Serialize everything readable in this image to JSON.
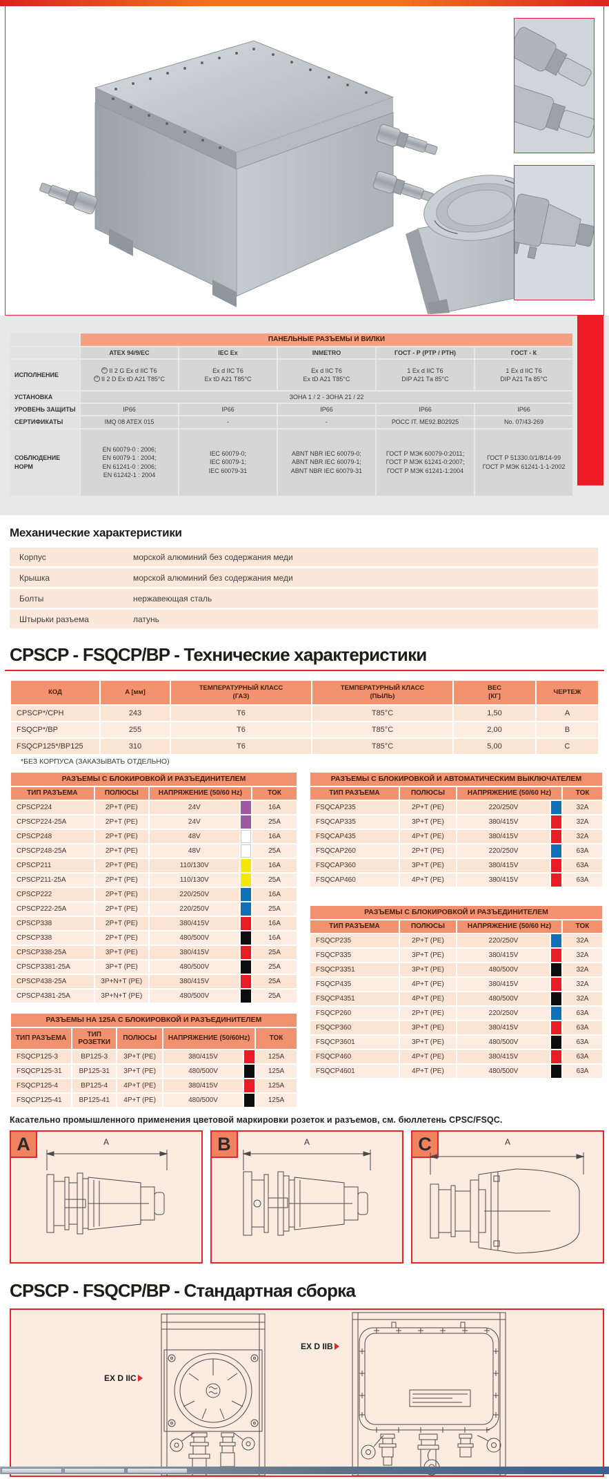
{
  "colors": {
    "accent_red": "#e8232a",
    "red_tab": "#ee1c25",
    "salmon_header": "#f29170",
    "row_pink_a": "#fbe4d4",
    "row_pink_b": "#fcece2",
    "swatch_purple": "#a05aa5",
    "swatch_white": "#ffffff",
    "swatch_yellow": "#f6e70a",
    "swatch_blue": "#0f70b7",
    "swatch_red": "#e81c24",
    "swatch_black": "#0c0c0c"
  },
  "panel_table": {
    "title": "ПАНЕЛЬНЫЕ РАЗЪЕМЫ И ВИЛКИ",
    "columns": [
      "ATEX 94/9/EC",
      "IEC Ex",
      "INMETRO",
      "ГОСТ - Р (РТР / РТН)",
      "ГОСТ - К"
    ],
    "execution": {
      "label": "ИСПОЛНЕНИЕ",
      "atex_gas": "II 2 G Ex d IIC T6",
      "atex_dust": "II 2 D Ex tD A21 T85°C",
      "iec": [
        "Ex d IIC T6",
        "Ex tD A21 T85°C"
      ],
      "inmetro": [
        "Ex d IIC T6",
        "Ex tD A21 T85°C"
      ],
      "gost_r": [
        "1 Ex d IIC T6",
        "DIP A21 Tа 85°C"
      ],
      "gost_k": [
        "1 Ex d IIC T6",
        "DIP A21 Tа 85°C"
      ]
    },
    "installation": {
      "label": "УСТАНОВКА",
      "value": "ЗОНА 1 / 2 - ЗОНА 21 / 22"
    },
    "protection": {
      "label": "УРОВЕНЬ ЗАЩИТЫ",
      "values": [
        "IP66",
        "IP66",
        "IP66",
        "IP66",
        "IP66"
      ]
    },
    "certificates": {
      "label": "СЕРТИФИКАТЫ",
      "values": [
        "IMQ 08 ATEX 015",
        "-",
        "-",
        "РОСС IT. МЕ92.В02925",
        "No. 07/43-269"
      ]
    },
    "norms": {
      "label": "СОБЛЮДЕНИЕ\nНОРМ",
      "atex": [
        "EN 60079-0 : 2006;",
        "EN 60079-1 : 2004;",
        "EN 61241-0 : 2006;",
        "EN 61242-1 : 2004"
      ],
      "iec": [
        "IEC 60079-0;",
        "IEC 60079-1;",
        "IEC 60079-31"
      ],
      "inmetro": [
        "ABNT NBR IEC 60079-0;",
        "ABNT NBR IEC 60079-1;",
        "ABNT NBR IEC 60079-31"
      ],
      "gost_r": [
        "ГОСТ Р МЭК 60079-0:2011;",
        "ГОСТ Р МЭК 61241-0:2007;",
        "ГОСТ Р МЭК 61241-1:2004"
      ],
      "gost_k": [
        "ГОСТ Р 51330.0/1/8/14-99",
        "ГОСТ Р МЭК 61241-1-1-2002"
      ]
    }
  },
  "mechanical": {
    "title": "Механические характеристики",
    "rows": [
      [
        "Корпус",
        "морской алюминий без содержания меди"
      ],
      [
        "Крышка",
        "морской алюминий без содержания меди"
      ],
      [
        "Болты",
        "нержавеющая сталь"
      ],
      [
        "Штырьки разъема",
        "латунь"
      ]
    ]
  },
  "tech": {
    "title": "CPSCP - FSQCP/BP - Технические характеристики",
    "columns": [
      "КОД",
      "A [мм]",
      "ТЕМПЕРАТУРНЫЙ КЛАСС\n(ГАЗ)",
      "ТЕМПЕРАТУРНЫЙ КЛАСС\n(ПЫЛЬ)",
      "ВЕС\n[КГ]",
      "ЧЕРТЕЖ"
    ],
    "rows": [
      [
        "CPSCP*/CPH",
        "243",
        "T6",
        "T85°C",
        "1,50",
        "A"
      ],
      [
        "FSQCP*/BP",
        "255",
        "T6",
        "T85°C",
        "2,00",
        "B"
      ],
      [
        "FSQCP125*/BP125",
        "310",
        "T6",
        "T85°C",
        "5,00",
        "C"
      ]
    ],
    "footnote": "*БЕЗ КОРПУСА (ЗАКАЗЫВАТЬ ОТДЕЛЬНО)"
  },
  "conn": {
    "std_columns": [
      "ТИП РАЗЪЕМА",
      "ПОЛЮСЫ",
      "НАПРЯЖЕНИЕ (50/60 Hz)",
      "ТОК"
    ],
    "interlock": {
      "title": "РАЗЪЕМЫ С БЛОКИРОВКОЙ И РАЗЪЕДИНИТЕЛЕМ",
      "rows": [
        [
          "CPSCP224",
          "2P+T (PE)",
          "24V",
          "swatch:#a05aa5",
          "16A"
        ],
        [
          "CPSCP224-25A",
          "2P+T (PE)",
          "24V",
          "swatch:#a05aa5",
          "25A"
        ],
        [
          "CPSCP248",
          "2P+T (PE)",
          "48V",
          "swatch:#ffffff",
          "16A"
        ],
        [
          "CPSCP248-25A",
          "2P+T (PE)",
          "48V",
          "swatch:#ffffff",
          "25A"
        ],
        [
          "CPSCP211",
          "2P+T (PE)",
          "110/130V",
          "swatch:#f6e70a",
          "16A"
        ],
        [
          "CPSCP211-25A",
          "2P+T (PE)",
          "110/130V",
          "swatch:#f6e70a",
          "25A"
        ],
        [
          "CPSCP222",
          "2P+T (PE)",
          "220/250V",
          "swatch:#0f70b7",
          "16A"
        ],
        [
          "CPSCP222-25A",
          "2P+T (PE)",
          "220/250V",
          "swatch:#0f70b7",
          "25A"
        ],
        [
          "CPSCP338",
          "2P+T (PE)",
          "380/415V",
          "swatch:#e81c24",
          "16A"
        ],
        [
          "CPSCP338",
          "2P+T (PE)",
          "480/500V",
          "swatch:#0c0c0c",
          "16A"
        ],
        [
          "CPSCP338-25A",
          "3P+T (PE)",
          "380/415V",
          "swatch:#e81c24",
          "25A"
        ],
        [
          "CPSCP3381-25A",
          "3P+T (PE)",
          "480/500V",
          "swatch:#0c0c0c",
          "25A"
        ],
        [
          "CPSCP438-25A",
          "3P+N+T (PE)",
          "380/415V",
          "swatch:#e81c24",
          "25A"
        ],
        [
          "CPSCP4381-25A",
          "3P+N+T (PE)",
          "480/500V",
          "swatch:#0c0c0c",
          "25A"
        ]
      ]
    },
    "breaker": {
      "title": "РАЗЪЕМЫ С БЛОКИРОВКОЙ И АВТОМАТИЧЕСКИМ ВЫКЛЮЧАТЕЛЕМ",
      "rows": [
        [
          "FSQCAP235",
          "2P+T (PE)",
          "220/250V",
          "swatch:#0f70b7",
          "32A"
        ],
        [
          "FSQCAP335",
          "3P+T (PE)",
          "380/415V",
          "swatch:#e81c24",
          "32A"
        ],
        [
          "FSQCAP435",
          "4P+T (PE)",
          "380/415V",
          "swatch:#e81c24",
          "32A"
        ],
        [
          "FSQCAP260",
          "2P+T (PE)",
          "220/250V",
          "swatch:#0f70b7",
          "63A"
        ],
        [
          "FSQCAP360",
          "3P+T (PE)",
          "380/415V",
          "swatch:#e81c24",
          "63A"
        ],
        [
          "FSQCAP460",
          "4P+T (PE)",
          "380/415V",
          "swatch:#e81c24",
          "63A"
        ]
      ]
    },
    "interlock2": {
      "title": "РАЗЪЕМЫ С БЛОКИРОВКОЙ И РАЗЪЕДИНИТЕЛЕМ",
      "rows": [
        [
          "FSQCP235",
          "2P+T (PE)",
          "220/250V",
          "swatch:#0f70b7",
          "32A"
        ],
        [
          "FSQCP335",
          "3P+T (PE)",
          "380/415V",
          "swatch:#e81c24",
          "32A"
        ],
        [
          "FSQCP3351",
          "3P+T (PE)",
          "480/500V",
          "swatch:#0c0c0c",
          "32A"
        ],
        [
          "FSQCP435",
          "4P+T (PE)",
          "380/415V",
          "swatch:#e81c24",
          "32A"
        ],
        [
          "FSQCP4351",
          "4P+T (PE)",
          "480/500V",
          "swatch:#0c0c0c",
          "32A"
        ],
        [
          "FSQCP260",
          "2P+T (PE)",
          "220/250V",
          "swatch:#0f70b7",
          "63A"
        ],
        [
          "FSQCP360",
          "3P+T (PE)",
          "380/415V",
          "swatch:#e81c24",
          "63A"
        ],
        [
          "FSQCP3601",
          "3P+T (PE)",
          "480/500V",
          "swatch:#0c0c0c",
          "63A"
        ],
        [
          "FSQCP460",
          "4P+T (PE)",
          "380/415V",
          "swatch:#e81c24",
          "63A"
        ],
        [
          "FSQCP4601",
          "4P+T (PE)",
          "480/500V",
          "swatch:#0c0c0c",
          "63A"
        ]
      ]
    },
    "amp125": {
      "title": "РАЗЪЕМЫ НА 125А С БЛОКИРОВКОЙ И РАЗЪЕДИНИТЕЛЕМ",
      "columns": [
        "ТИП РАЗЪЕМА",
        "ТИП РОЗЕТКИ",
        "ПОЛЮСЫ",
        "НАПРЯЖЕНИЕ (50/60Hz)",
        "ТОК"
      ],
      "rows": [
        [
          "FSQCP125-3",
          "BP125-3",
          "3P+T (PE)",
          "380/415V",
          "swatch:#e81c24",
          "125A"
        ],
        [
          "FSQCP125-31",
          "BP125-31",
          "3P+T (PE)",
          "480/500V",
          "swatch:#0c0c0c",
          "125A"
        ],
        [
          "FSQCP125-4",
          "BP125-4",
          "4P+T (PE)",
          "380/415V",
          "swatch:#e81c24",
          "125A"
        ],
        [
          "FSQCP125-41",
          "BP125-41",
          "4P+T (PE)",
          "480/500V",
          "swatch:#0c0c0c",
          "125A"
        ]
      ]
    }
  },
  "note": "Касательно промышленного применения цветовой маркировки розеток и разъемов, см. бюллетень CPSC/FSQC.",
  "drawings": {
    "labels": [
      "A",
      "B",
      "C"
    ],
    "dimension": "A"
  },
  "assembly": {
    "title": "CPSCP - FSQCP/BP - Стандартная сборка",
    "label_left": "EX D IIC",
    "label_right": "EX D IIB"
  }
}
